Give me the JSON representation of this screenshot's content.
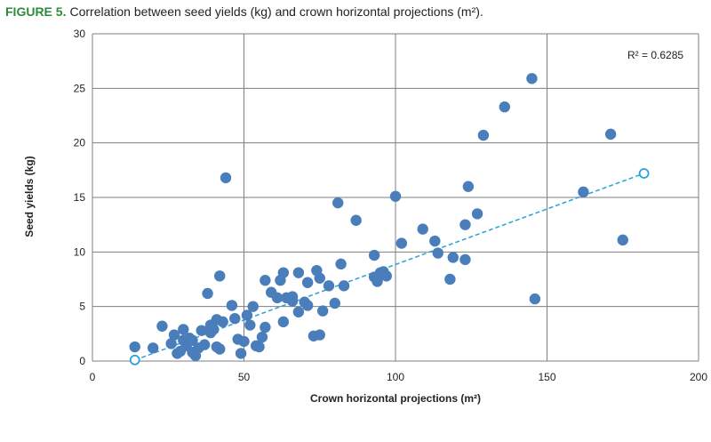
{
  "figure": {
    "label": "FIGURE 5.",
    "caption": "Correlation between seed yields (kg) and crown horizontal projections (m²)."
  },
  "chart_data": {
    "type": "scatter",
    "title": "",
    "xlabel": "Crown horizontal projections (m²)",
    "ylabel": "Seed yields (kg)",
    "xlim": [
      0,
      200
    ],
    "ylim": [
      0,
      30
    ],
    "xticks": [
      0,
      50,
      100,
      150,
      200
    ],
    "yticks": [
      0,
      5,
      10,
      15,
      20,
      25,
      30
    ],
    "grid": true,
    "annotation": "R² = 0.6285",
    "colors": {
      "points": "#4a7ebb",
      "trend": "#2ba3d9",
      "grid": "#7f7f7f"
    },
    "trendline": {
      "x": [
        14,
        182
      ],
      "y": [
        0.1,
        17.2
      ]
    },
    "points": [
      [
        14,
        1.3
      ],
      [
        20,
        1.2
      ],
      [
        23,
        3.2
      ],
      [
        26,
        1.6
      ],
      [
        27,
        2.4
      ],
      [
        28,
        0.7
      ],
      [
        29,
        0.9
      ],
      [
        30,
        2.9
      ],
      [
        30,
        1.9
      ],
      [
        31,
        1.4
      ],
      [
        32,
        2.1
      ],
      [
        33,
        0.8
      ],
      [
        33,
        1.9
      ],
      [
        34,
        0.5
      ],
      [
        35,
        1.2
      ],
      [
        36,
        2.8
      ],
      [
        37,
        1.5
      ],
      [
        38,
        6.2
      ],
      [
        39,
        3.3
      ],
      [
        39,
        2.6
      ],
      [
        40,
        2.9
      ],
      [
        41,
        1.3
      ],
      [
        41,
        3.8
      ],
      [
        42,
        7.8
      ],
      [
        42,
        1.1
      ],
      [
        43,
        3.6
      ],
      [
        44,
        16.8
      ],
      [
        46,
        5.1
      ],
      [
        47,
        3.9
      ],
      [
        48,
        2.0
      ],
      [
        49,
        0.7
      ],
      [
        50,
        1.8
      ],
      [
        51,
        4.2
      ],
      [
        52,
        3.3
      ],
      [
        53,
        5.0
      ],
      [
        54,
        1.4
      ],
      [
        55,
        1.3
      ],
      [
        56,
        2.2
      ],
      [
        57,
        7.4
      ],
      [
        57,
        3.1
      ],
      [
        59,
        6.3
      ],
      [
        61,
        5.8
      ],
      [
        62,
        7.4
      ],
      [
        63,
        3.6
      ],
      [
        63,
        8.1
      ],
      [
        64,
        5.8
      ],
      [
        66,
        5.5
      ],
      [
        66,
        5.9
      ],
      [
        68,
        4.5
      ],
      [
        68,
        8.1
      ],
      [
        70,
        5.4
      ],
      [
        71,
        5.1
      ],
      [
        71,
        7.2
      ],
      [
        73,
        2.3
      ],
      [
        74,
        8.3
      ],
      [
        75,
        2.4
      ],
      [
        75,
        7.6
      ],
      [
        76,
        4.6
      ],
      [
        78,
        6.9
      ],
      [
        80,
        5.3
      ],
      [
        81,
        14.5
      ],
      [
        82,
        8.9
      ],
      [
        83,
        6.9
      ],
      [
        87,
        12.9
      ],
      [
        93,
        9.7
      ],
      [
        93,
        7.7
      ],
      [
        94,
        7.3
      ],
      [
        95,
        8.1
      ],
      [
        96,
        8.2
      ],
      [
        97,
        7.8
      ],
      [
        100,
        15.1
      ],
      [
        102,
        10.8
      ],
      [
        109,
        12.1
      ],
      [
        113,
        11.0
      ],
      [
        114,
        9.9
      ],
      [
        118,
        7.5
      ],
      [
        119,
        9.5
      ],
      [
        123,
        9.3
      ],
      [
        123,
        12.5
      ],
      [
        124,
        16.0
      ],
      [
        127,
        13.5
      ],
      [
        129,
        20.7
      ],
      [
        136,
        23.3
      ],
      [
        145,
        25.9
      ],
      [
        146,
        5.7
      ],
      [
        162,
        15.5
      ],
      [
        171,
        20.8
      ],
      [
        175,
        11.1
      ]
    ]
  }
}
